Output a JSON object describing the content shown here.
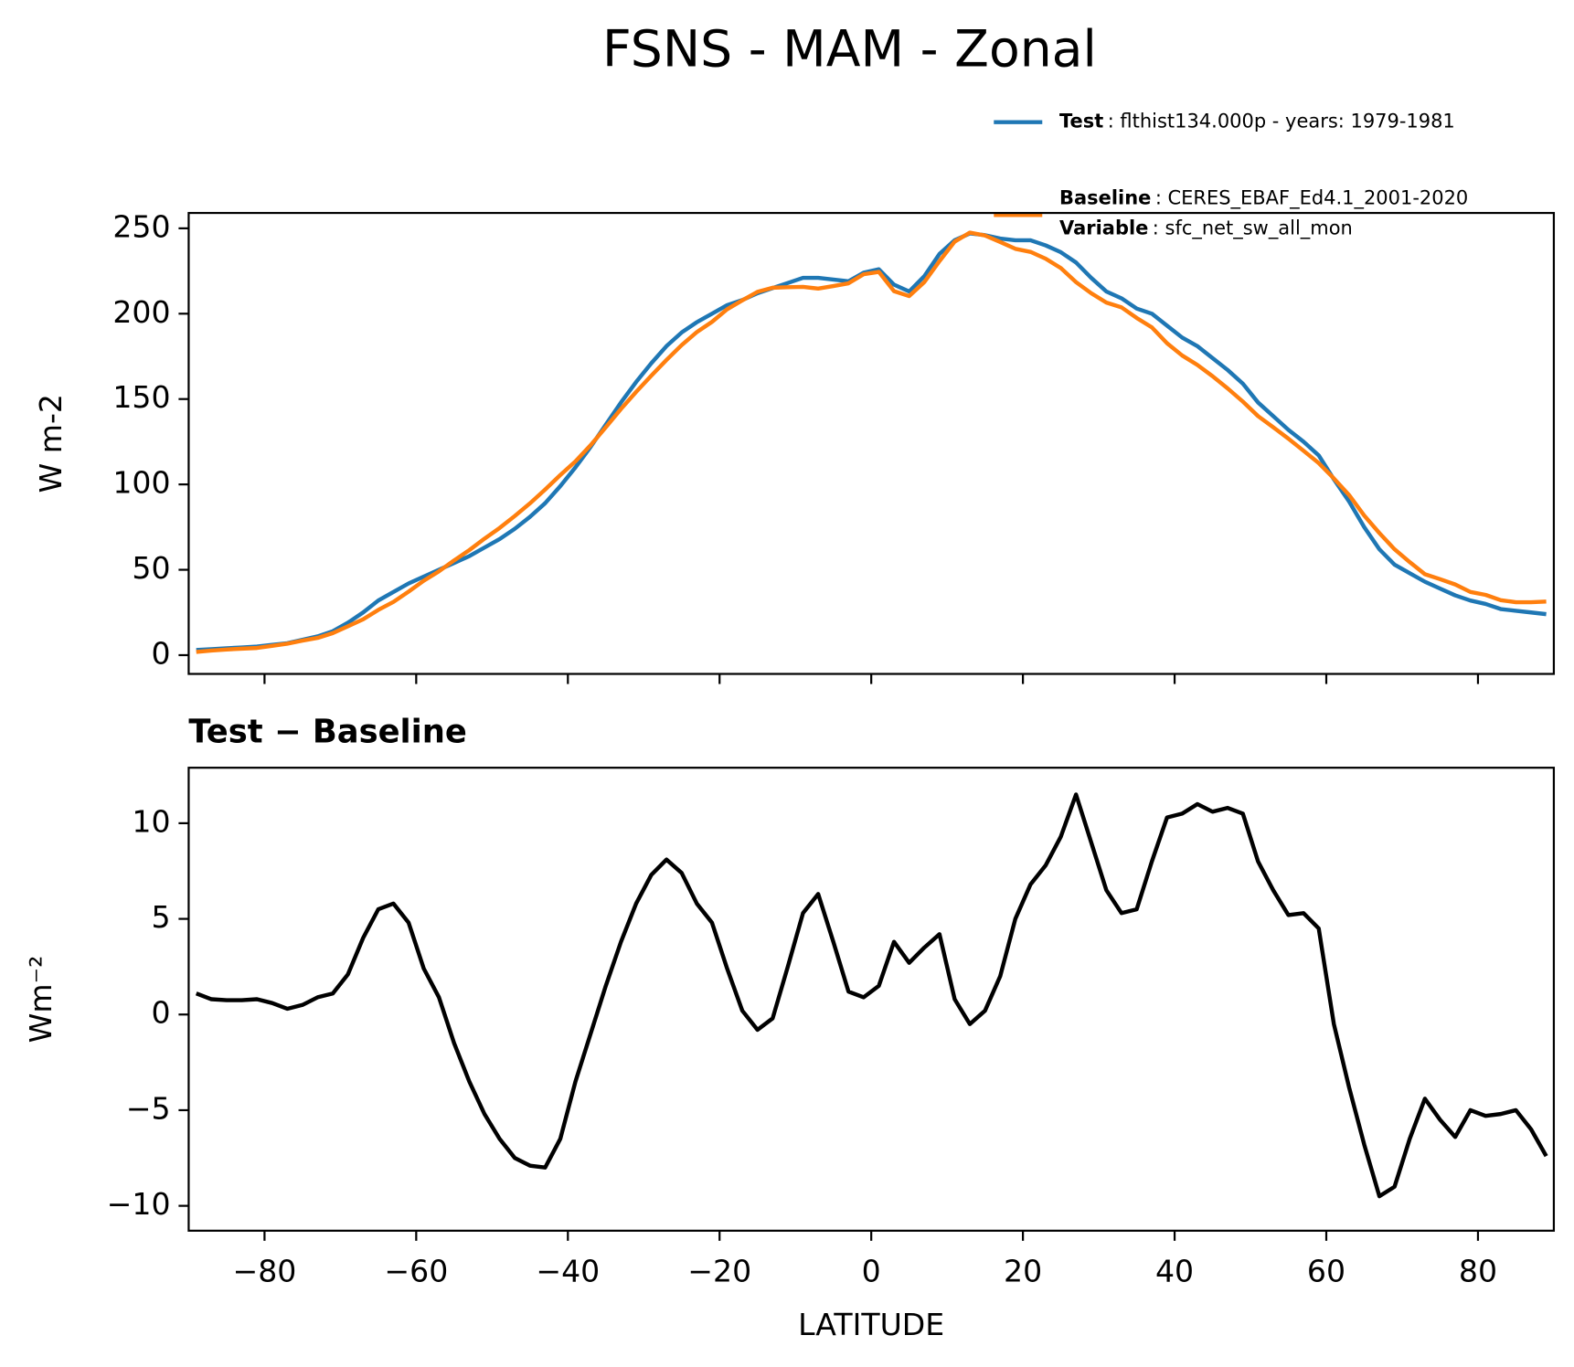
{
  "title": "FSNS - MAM - Zonal",
  "chart_data": [
    {
      "type": "line",
      "ylabel": "W m-2",
      "x": [
        -89,
        -87,
        -85,
        -83,
        -81,
        -79,
        -77,
        -75,
        -73,
        -71,
        -69,
        -67,
        -65,
        -63,
        -61,
        -59,
        -57,
        -55,
        -53,
        -51,
        -49,
        -47,
        -45,
        -43,
        -41,
        -39,
        -37,
        -35,
        -33,
        -31,
        -29,
        -27,
        -25,
        -23,
        -21,
        -19,
        -17,
        -15,
        -13,
        -11,
        -9,
        -7,
        -5,
        -3,
        -1,
        1,
        3,
        5,
        7,
        9,
        11,
        13,
        15,
        17,
        19,
        21,
        23,
        25,
        27,
        29,
        31,
        33,
        35,
        37,
        39,
        41,
        43,
        45,
        47,
        49,
        51,
        53,
        55,
        57,
        59,
        61,
        63,
        65,
        67,
        69,
        71,
        73,
        75,
        77,
        79,
        81,
        83,
        85,
        87,
        89
      ],
      "series": [
        {
          "name": "Test",
          "description": ": flthist134.000p - years: 1979-1981",
          "color": "#1f77b4",
          "values": [
            3,
            3.5,
            4,
            4.5,
            5,
            6,
            7,
            9,
            11,
            14,
            19,
            25,
            32,
            37,
            42,
            46,
            50,
            54,
            58,
            63,
            68,
            74,
            81,
            89,
            99,
            110,
            122,
            135,
            148,
            160,
            171,
            181,
            189,
            195,
            200,
            205,
            208,
            212,
            215,
            218,
            221,
            221,
            220,
            219,
            224,
            226,
            217,
            213,
            222,
            235,
            243,
            247,
            246,
            244,
            243,
            243,
            240,
            236,
            230,
            221,
            213,
            209,
            203,
            200,
            193,
            186,
            181,
            174,
            167,
            159,
            148,
            140,
            132,
            125,
            117,
            103,
            90,
            75,
            62,
            53,
            48,
            43,
            39,
            35,
            32,
            30,
            27,
            26,
            25,
            24
          ]
        },
        {
          "name": "Baseline",
          "description": ": CERES_EBAF_Ed4.1_2001-2020",
          "variable_label": "Variable",
          "variable": ": sfc_net_sw_all_mon",
          "color": "#ff7f0e",
          "values": [
            1.9,
            2.7,
            3.3,
            3.8,
            4.2,
            5.4,
            6.7,
            8.5,
            10.1,
            12.9,
            16.9,
            21,
            26.5,
            31.2,
            37.2,
            43.6,
            49.1,
            55.5,
            61.5,
            68.2,
            74.5,
            81.5,
            88.9,
            97,
            105.5,
            113.5,
            123,
            133.5,
            144.2,
            154.2,
            163.7,
            172.9,
            181.6,
            189.2,
            195.2,
            202.6,
            207.8,
            212.8,
            215.2,
            215.5,
            215.7,
            214.7,
            216.2,
            217.8,
            223.1,
            224.5,
            213.2,
            210.3,
            218.5,
            230.8,
            242.2,
            247.5,
            245.8,
            242,
            238,
            236.2,
            232.2,
            226.7,
            218.5,
            212,
            206.5,
            203.7,
            197.5,
            192,
            182.7,
            175.5,
            170,
            163.4,
            156.2,
            148.5,
            140,
            133.5,
            126.8,
            119.7,
            112.5,
            103.5,
            93.8,
            81.8,
            71.5,
            62,
            54.5,
            47.4,
            44.5,
            41.4,
            37,
            35.3,
            32.2,
            31,
            31,
            31.4
          ]
        }
      ],
      "xlim": [
        -90,
        90
      ],
      "xticks": [
        -80,
        -60,
        -40,
        -20,
        0,
        20,
        40,
        60,
        80
      ],
      "xtick_labels": false,
      "ylim": [
        -11,
        259
      ],
      "yticks": [
        0,
        50,
        100,
        150,
        200,
        250
      ]
    },
    {
      "type": "line",
      "title": "Test − Baseline",
      "ylabel": "Wm⁻²",
      "xlabel": "LATITUDE",
      "color": "#000000",
      "x": [
        -89,
        -87,
        -85,
        -83,
        -81,
        -79,
        -77,
        -75,
        -73,
        -71,
        -69,
        -67,
        -65,
        -63,
        -61,
        -59,
        -57,
        -55,
        -53,
        -51,
        -49,
        -47,
        -45,
        -43,
        -41,
        -39,
        -37,
        -35,
        -33,
        -31,
        -29,
        -27,
        -25,
        -23,
        -21,
        -19,
        -17,
        -15,
        -13,
        -11,
        -9,
        -7,
        -5,
        -3,
        -1,
        1,
        3,
        5,
        7,
        9,
        11,
        13,
        15,
        17,
        19,
        21,
        23,
        25,
        27,
        29,
        31,
        33,
        35,
        37,
        39,
        41,
        43,
        45,
        47,
        49,
        51,
        53,
        55,
        57,
        59,
        61,
        63,
        65,
        67,
        69,
        71,
        73,
        75,
        77,
        79,
        81,
        83,
        85,
        87,
        89
      ],
      "values": [
        1.1,
        0.8,
        0.75,
        0.75,
        0.8,
        0.6,
        0.3,
        0.5,
        0.9,
        1.1,
        2.1,
        4.0,
        5.5,
        5.8,
        4.8,
        2.4,
        0.9,
        -1.5,
        -3.5,
        -5.2,
        -6.5,
        -7.5,
        -7.9,
        -8.0,
        -6.5,
        -3.5,
        -1.0,
        1.5,
        3.8,
        5.8,
        7.3,
        8.1,
        7.4,
        5.8,
        4.8,
        2.4,
        0.2,
        -0.8,
        -0.2,
        2.5,
        5.3,
        6.3,
        3.8,
        1.2,
        0.9,
        1.5,
        3.8,
        2.7,
        3.5,
        4.2,
        0.8,
        -0.5,
        0.2,
        2.0,
        5.0,
        6.8,
        7.8,
        9.3,
        11.5,
        9.0,
        6.5,
        5.3,
        5.5,
        8.0,
        10.3,
        10.5,
        11.0,
        10.6,
        10.8,
        10.5,
        8.0,
        6.5,
        5.2,
        5.3,
        4.5,
        -0.5,
        -3.8,
        -6.8,
        -9.5,
        -9.0,
        -6.5,
        -4.4,
        -5.5,
        -6.4,
        -5.0,
        -5.3,
        -5.2,
        -5.0,
        -6.0,
        -7.4
      ],
      "xlim": [
        -90,
        90
      ],
      "xticks": [
        {
          "value": -80,
          "label": "−80"
        },
        {
          "value": -60,
          "label": "−60"
        },
        {
          "value": -40,
          "label": "−40"
        },
        {
          "value": -20,
          "label": "−20"
        },
        0,
        20,
        40,
        60,
        80
      ],
      "ylim": [
        -11.3,
        12.9
      ],
      "yticks": [
        {
          "value": -10,
          "label": "−10"
        },
        {
          "value": -5,
          "label": "−5"
        },
        0,
        5,
        10
      ]
    }
  ]
}
